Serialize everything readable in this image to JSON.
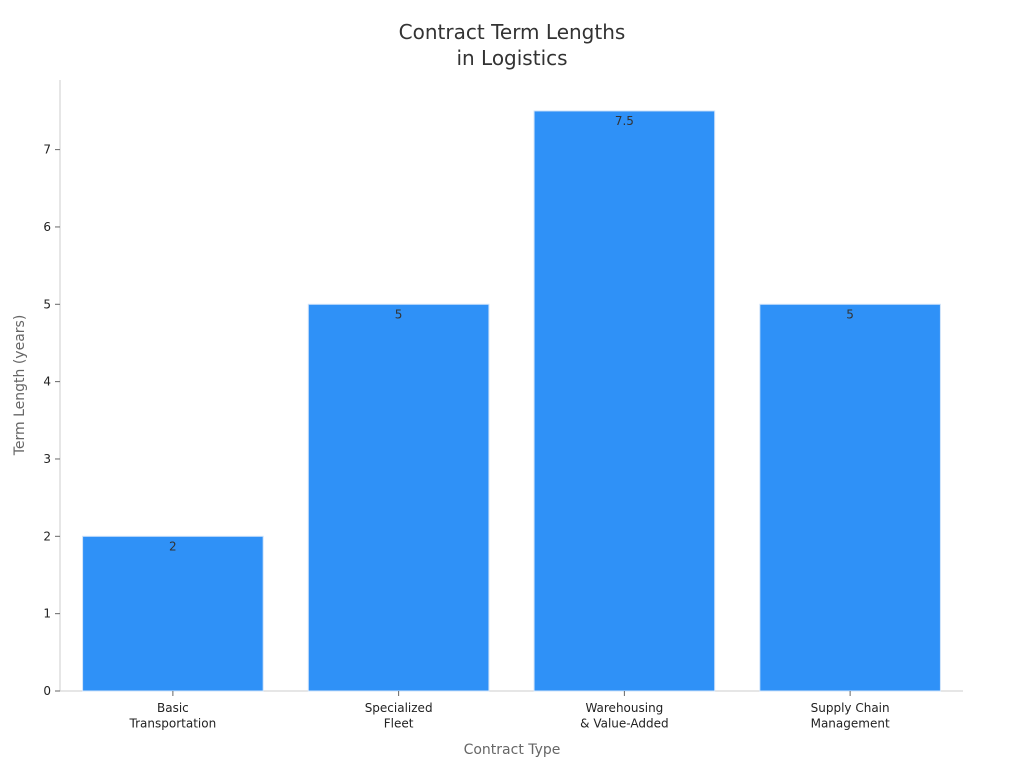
{
  "chart_data": {
    "type": "bar",
    "title": "Contract Term Lengths\nin Logistics",
    "x_label": "Contract Type",
    "y_label": "Term Length (years)",
    "categories": [
      "Basic\nTransportation",
      "Specialized\nFleet",
      "Warehousing\n& Value-Added",
      "Supply Chain\nManagement"
    ],
    "values": [
      2,
      5,
      7.5,
      5
    ],
    "color": "#2f91f7",
    "ylim": [
      0,
      7.9
    ],
    "yticks": [
      0,
      1,
      2,
      3,
      4,
      5,
      6,
      7
    ],
    "grid": false,
    "data_labels": true
  }
}
